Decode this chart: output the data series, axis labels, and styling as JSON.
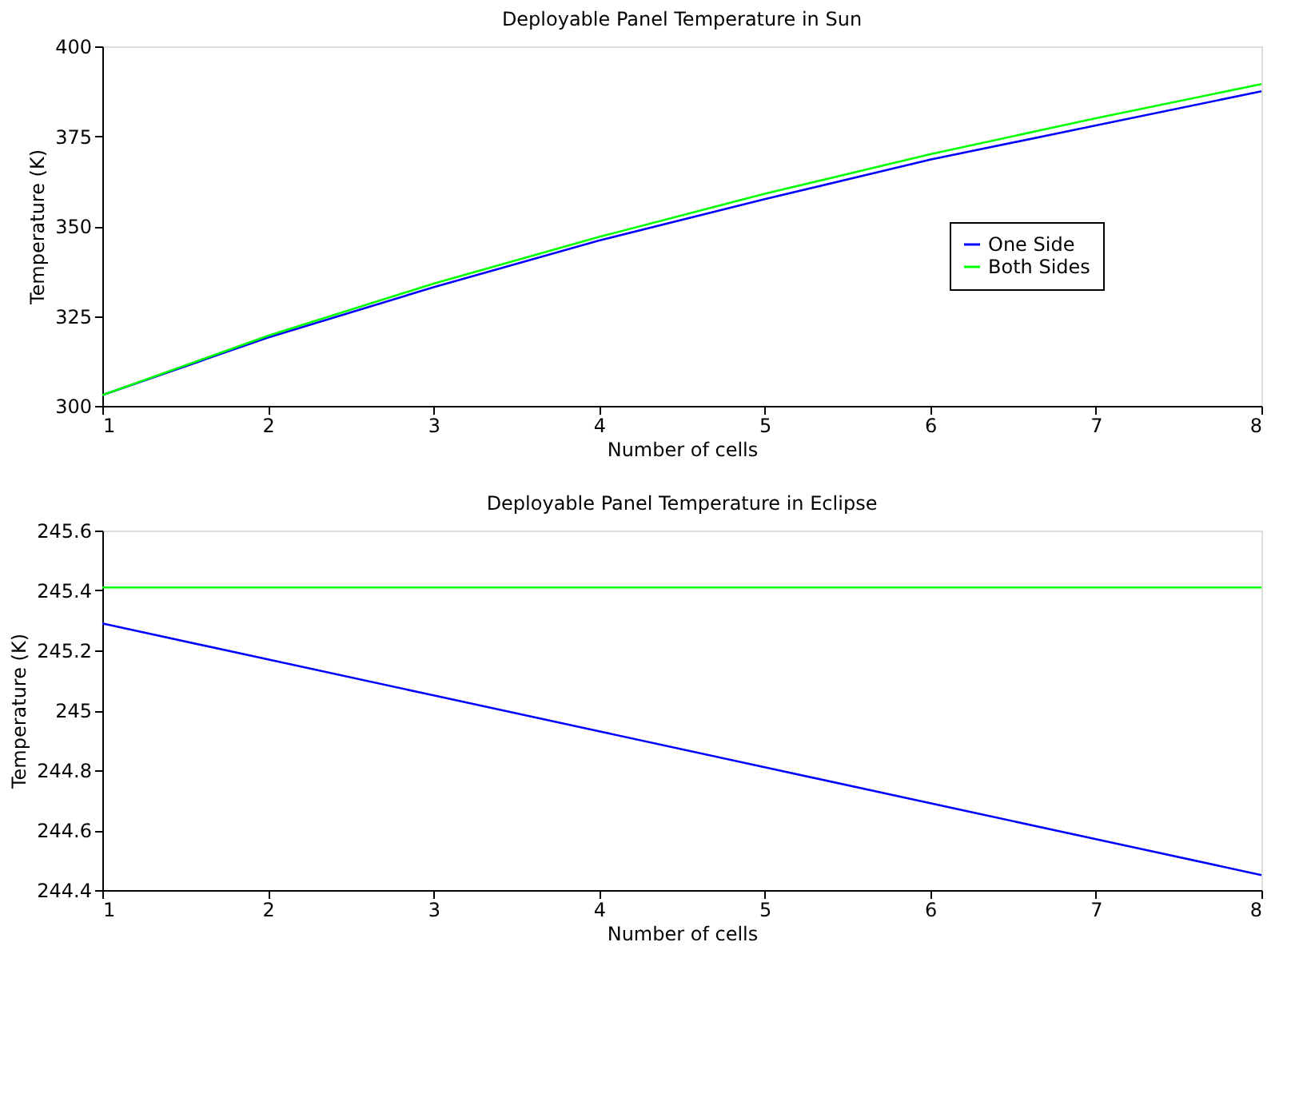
{
  "chart_data": [
    {
      "type": "line",
      "title": "Deployable Panel Temperature in Sun",
      "xlabel": "Number of cells",
      "ylabel": "Temperature (K)",
      "x": [
        1,
        2,
        3,
        4,
        5,
        6,
        7,
        8
      ],
      "xlim": [
        1,
        8
      ],
      "xticks": [
        1,
        2,
        3,
        4,
        5,
        6,
        7,
        8
      ],
      "ylim": [
        300,
        400
      ],
      "yticks": [
        300,
        325,
        350,
        375,
        400
      ],
      "grid": false,
      "legend": "right",
      "line_style": "solid",
      "marker": "none",
      "series": [
        {
          "name": "One Side",
          "color": "#0000ff",
          "values": [
            303,
            319,
            333,
            346,
            357.5,
            368.5,
            378,
            387.5
          ]
        },
        {
          "name": "Both Sides",
          "color": "#00ff00",
          "values": [
            303,
            319.5,
            334,
            347,
            359,
            370,
            380,
            389.5
          ]
        }
      ]
    },
    {
      "type": "line",
      "title": "Deployable Panel Temperature in Eclipse",
      "xlabel": "Number of cells",
      "ylabel": "Temperature (K)",
      "x": [
        1,
        2,
        3,
        4,
        5,
        6,
        7,
        8
      ],
      "xlim": [
        1,
        8
      ],
      "xticks": [
        1,
        2,
        3,
        4,
        5,
        6,
        7,
        8
      ],
      "ylim": [
        244.4,
        245.6
      ],
      "yticks": [
        244.4,
        244.6,
        244.8,
        245,
        245.2,
        245.4,
        245.6
      ],
      "grid": false,
      "legend": false,
      "line_style": "solid",
      "marker": "none",
      "series": [
        {
          "color": "#0000ff",
          "values": [
            245.29,
            245.17,
            245.05,
            244.93,
            244.81,
            244.69,
            244.57,
            244.45
          ]
        },
        {
          "color": "#00ff00",
          "values": [
            245.41,
            245.41,
            245.41,
            245.41,
            245.41,
            245.41,
            245.41,
            245.41
          ]
        }
      ]
    }
  ]
}
